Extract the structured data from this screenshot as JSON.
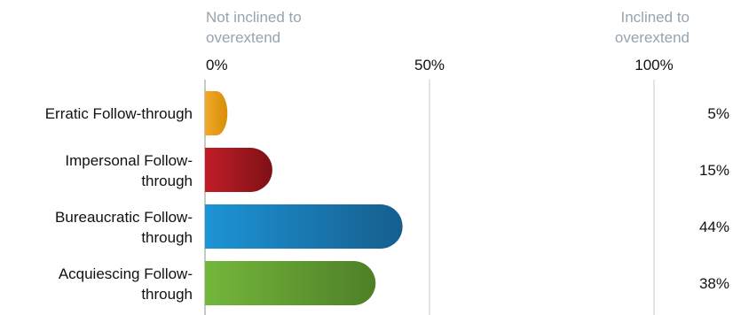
{
  "chart_data": {
    "type": "bar",
    "orientation": "horizontal",
    "left_header": [
      "Not inclined to",
      "overextend"
    ],
    "right_header": [
      "Inclined to",
      "overextend"
    ],
    "x_ticks": [
      "0%",
      "50%",
      "100%"
    ],
    "xlim": [
      0,
      100
    ],
    "grid": true,
    "categories": [
      "Erratic Follow-through",
      "Impersonal Follow-through",
      "Bureaucratic Follow-through",
      "Acquiescing Follow-through"
    ],
    "category_display_lines": [
      [
        "Erratic Follow-through"
      ],
      [
        "Impersonal Follow-",
        "through"
      ],
      [
        "Bureaucratic Follow-",
        "through"
      ],
      [
        "Acquiescing Follow-",
        "through"
      ]
    ],
    "values": [
      5,
      15,
      44,
      38
    ],
    "value_labels": [
      "5%",
      "15%",
      "44%",
      "38%"
    ],
    "colors": [
      "#f0a92a",
      "#c31d27",
      "#1d94d6",
      "#74b73b"
    ],
    "colors_dark": [
      "#d98d08",
      "#7d1117",
      "#155e8d",
      "#4e7f27"
    ]
  }
}
